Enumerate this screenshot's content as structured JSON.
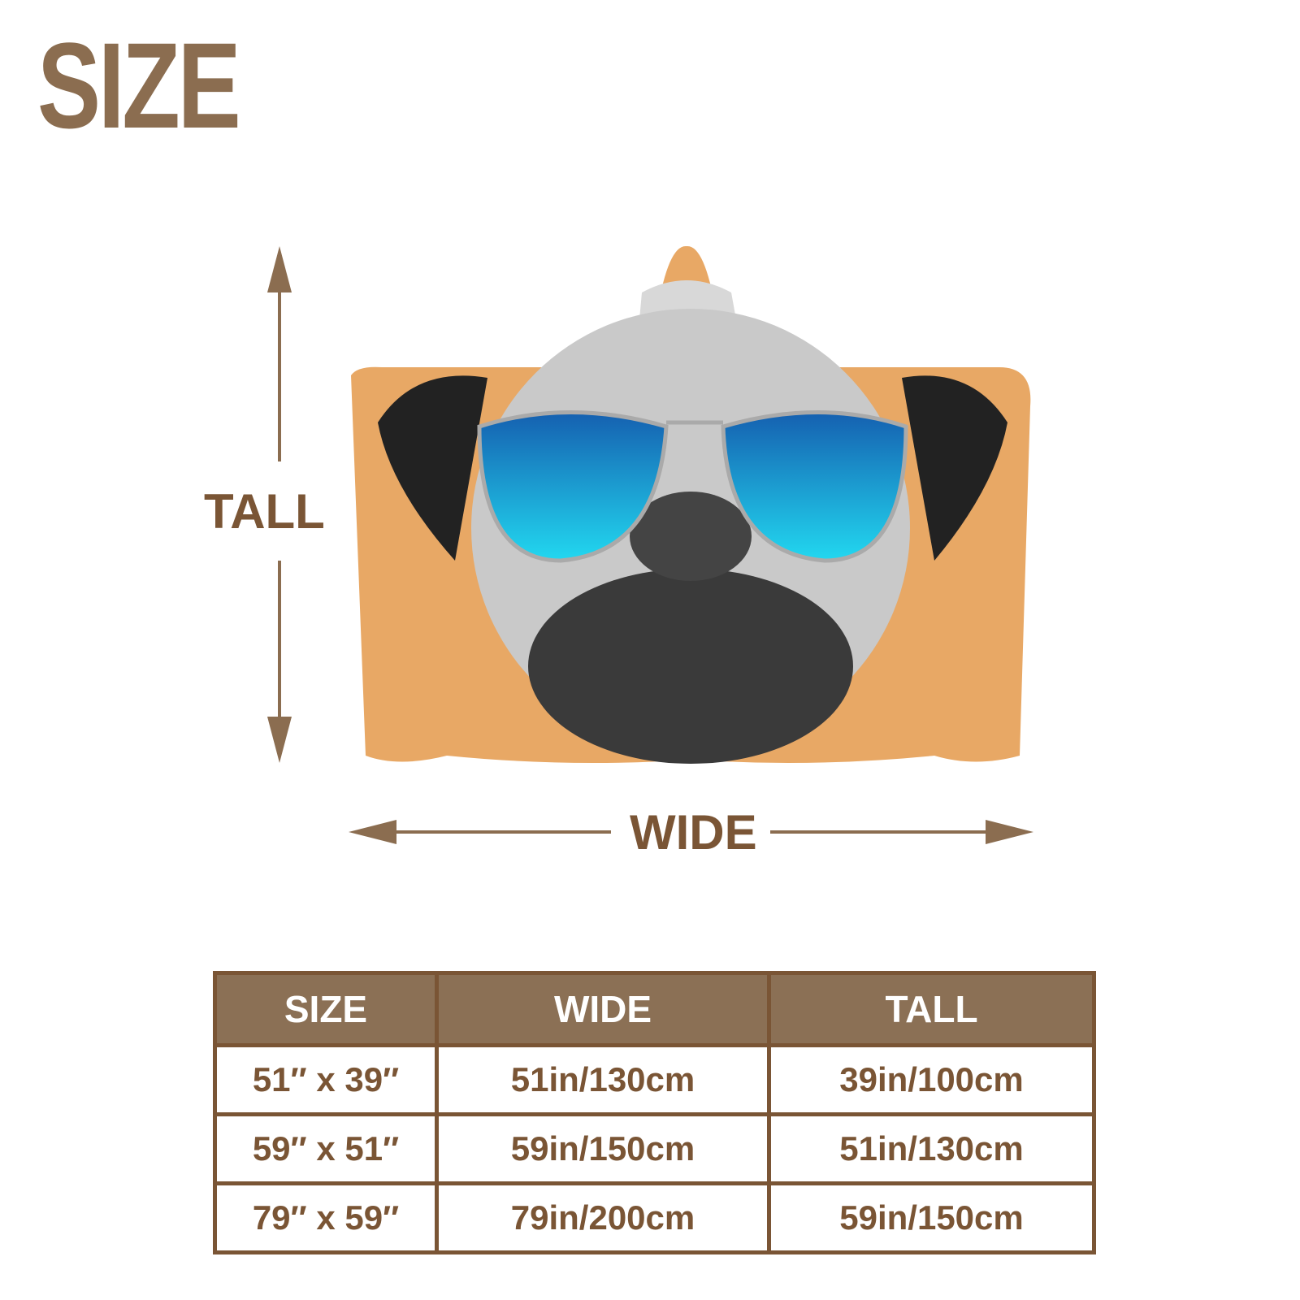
{
  "title": "SIZE",
  "diagram": {
    "tall_label": "TALL",
    "wide_label": "WIDE",
    "product_image": "hooded-blanket-pug-with-sunglasses",
    "colors": {
      "brand": "#8b6d50",
      "text": "#7a5535",
      "blanket": "#e8a865",
      "lens": "#1aa8e0"
    }
  },
  "size_table": {
    "headers": [
      "SIZE",
      "WIDE",
      "TALL"
    ],
    "rows": [
      [
        "51″ x 39″",
        "51in/130cm",
        "39in/100cm"
      ],
      [
        "59″ x 51″",
        "59in/150cm",
        "51in/130cm"
      ],
      [
        "79″ x 59″",
        "79in/200cm",
        "59in/150cm"
      ]
    ]
  }
}
